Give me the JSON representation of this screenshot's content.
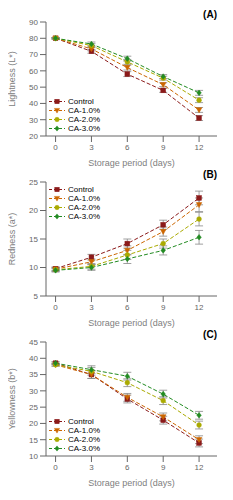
{
  "chart_data": [
    {
      "type": "line",
      "title": "(A)",
      "xlabel": "Storage period (days)",
      "ylabel": "Lightness (L*)",
      "x": [
        0,
        3,
        6,
        9,
        12
      ],
      "xlim": [
        -0.8,
        13.5
      ],
      "xticks": [
        0,
        3,
        6,
        9,
        12
      ],
      "ylim": [
        20,
        90
      ],
      "yticks": [
        20,
        30,
        40,
        50,
        60,
        70,
        80,
        90
      ],
      "grid": false,
      "legend": "lower left",
      "series": [
        {
          "name": "Control",
          "color": "#8B1A1A",
          "marker": "square",
          "line_style": "dashed",
          "values": [
            80.0,
            72.0,
            58.0,
            48.0,
            31.0
          ],
          "yerr": [
            0.4,
            1.2,
            1.5,
            1.2,
            1.5
          ]
        },
        {
          "name": "CA-1.0%",
          "color": "#CC6600",
          "marker": "triangle_down",
          "line_style": "dashed",
          "values": [
            80.0,
            73.5,
            62.0,
            51.5,
            36.0
          ],
          "yerr": [
            0.4,
            1.2,
            1.5,
            1.2,
            1.5
          ]
        },
        {
          "name": "CA-2.0%",
          "color": "#AAAA00",
          "marker": "circle",
          "line_style": "dashed",
          "values": [
            80.0,
            75.5,
            65.5,
            55.5,
            42.0
          ],
          "yerr": [
            0.4,
            1.2,
            1.5,
            1.2,
            1.5
          ]
        },
        {
          "name": "CA-3.0%",
          "color": "#228B22",
          "marker": "diamond",
          "line_style": "dashed",
          "values": [
            80.0,
            76.5,
            67.5,
            56.5,
            46.5
          ],
          "yerr": [
            0.4,
            1.2,
            1.5,
            1.2,
            1.5
          ]
        }
      ]
    },
    {
      "type": "line",
      "title": "(B)",
      "xlabel": "Storage period (days)",
      "ylabel": "Redness (a*)",
      "x": [
        0,
        3,
        6,
        9,
        12
      ],
      "xlim": [
        -0.8,
        13.5
      ],
      "xticks": [
        0,
        3,
        6,
        9,
        12
      ],
      "ylim": [
        5,
        25
      ],
      "yticks": [
        5,
        10,
        15,
        20,
        25
      ],
      "grid": false,
      "legend": "upper left",
      "series": [
        {
          "name": "Control",
          "color": "#8B1A1A",
          "marker": "square",
          "line_style": "dashed",
          "values": [
            9.8,
            11.8,
            14.2,
            17.5,
            22.2
          ],
          "yerr": [
            0.3,
            0.5,
            0.8,
            0.8,
            1.2
          ]
        },
        {
          "name": "CA-1.0%",
          "color": "#CC6600",
          "marker": "triangle_down",
          "line_style": "dashed",
          "values": [
            9.7,
            11.0,
            13.0,
            16.3,
            21.0
          ],
          "yerr": [
            0.3,
            0.5,
            0.8,
            0.8,
            1.2
          ]
        },
        {
          "name": "CA-2.0%",
          "color": "#AAAA00",
          "marker": "circle",
          "line_style": "dashed",
          "values": [
            9.6,
            10.2,
            12.2,
            14.2,
            18.5
          ],
          "yerr": [
            0.3,
            0.5,
            0.8,
            0.8,
            1.2
          ]
        },
        {
          "name": "CA-3.0%",
          "color": "#228B22",
          "marker": "diamond",
          "line_style": "dashed",
          "values": [
            9.5,
            10.0,
            11.5,
            13.0,
            15.3
          ],
          "yerr": [
            0.3,
            0.5,
            0.8,
            0.8,
            1.2
          ]
        }
      ]
    },
    {
      "type": "line",
      "title": "(C)",
      "xlabel": "Storage period (days)",
      "ylabel": "Yellowness (b*)",
      "x": [
        0,
        3,
        6,
        9,
        12
      ],
      "xlim": [
        -0.8,
        13.5
      ],
      "xticks": [
        0,
        3,
        6,
        9,
        12
      ],
      "ylim": [
        10,
        45
      ],
      "yticks": [
        10,
        15,
        20,
        25,
        30,
        35,
        40,
        45
      ],
      "grid": false,
      "legend": "lower left",
      "series": [
        {
          "name": "Control",
          "color": "#8B1A1A",
          "marker": "square",
          "line_style": "dashed",
          "values": [
            38.5,
            35.0,
            27.5,
            21.0,
            14.0
          ],
          "yerr": [
            0.4,
            1.2,
            1.2,
            1.2,
            1.2
          ]
        },
        {
          "name": "CA-1.0%",
          "color": "#CC6600",
          "marker": "triangle_down",
          "line_style": "dashed",
          "values": [
            38.0,
            35.0,
            28.0,
            22.0,
            15.0
          ],
          "yerr": [
            0.4,
            1.2,
            1.2,
            1.2,
            1.2
          ]
        },
        {
          "name": "CA-2.0%",
          "color": "#AAAA00",
          "marker": "circle",
          "line_style": "dashed",
          "values": [
            38.0,
            36.0,
            32.5,
            27.0,
            19.5
          ],
          "yerr": [
            0.4,
            1.2,
            1.2,
            1.2,
            1.2
          ]
        },
        {
          "name": "CA-3.0%",
          "color": "#228B22",
          "marker": "diamond",
          "line_style": "dashed",
          "values": [
            38.5,
            36.5,
            34.5,
            29.0,
            22.5
          ],
          "yerr": [
            0.4,
            1.2,
            1.2,
            1.2,
            1.2
          ]
        }
      ]
    }
  ]
}
